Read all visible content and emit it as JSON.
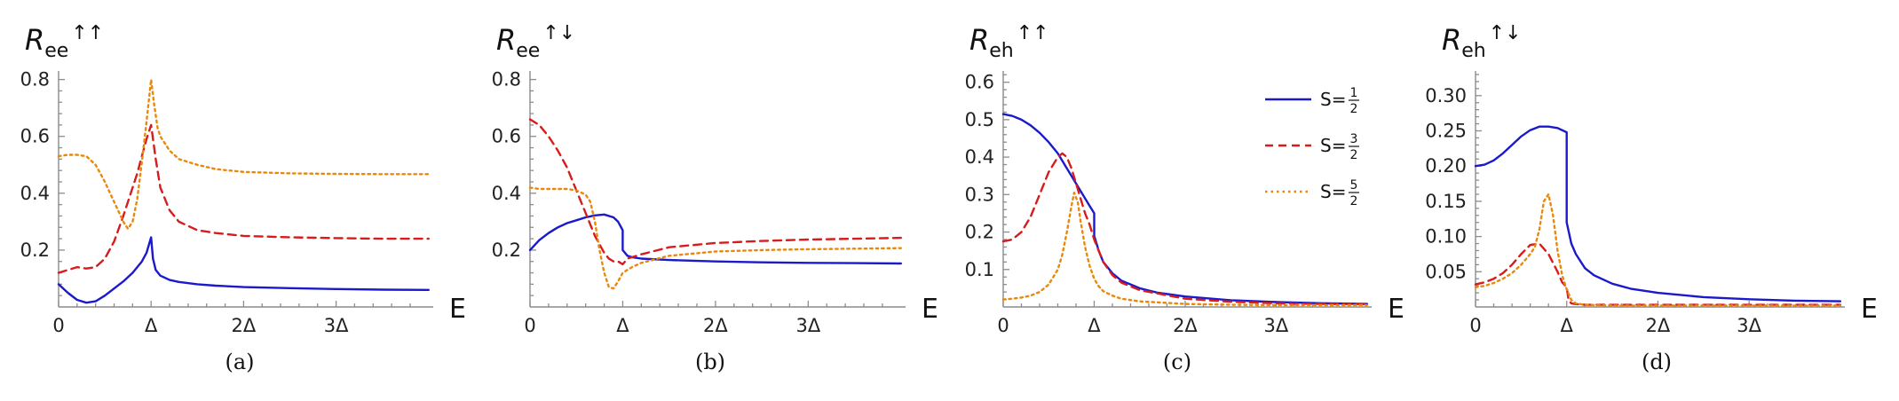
{
  "chart_data": [
    {
      "type": "line",
      "caption": "(a)",
      "ylabel": {
        "base": "R",
        "sub": "ee",
        "sup": "↑↑"
      },
      "xlabel": "E",
      "xlim": [
        0,
        4.05
      ],
      "ylim": [
        0.0,
        0.83
      ],
      "yticks": [
        {
          "value": 0.2,
          "label": "0.2"
        },
        {
          "value": 0.4,
          "label": "0.4"
        },
        {
          "value": 0.6,
          "label": "0.6"
        },
        {
          "value": 0.8,
          "label": "0.8"
        }
      ],
      "xticks": [
        {
          "value": 0,
          "label": "0"
        },
        {
          "value": 1,
          "label": "Δ"
        },
        {
          "value": 2,
          "label": "2Δ"
        },
        {
          "value": 3,
          "label": "3Δ"
        }
      ],
      "series": [
        {
          "name": "S=1/2",
          "x": [
            0,
            0.1,
            0.2,
            0.3,
            0.4,
            0.5,
            0.6,
            0.7,
            0.8,
            0.9,
            0.95,
            1.0,
            1.02,
            1.05,
            1.1,
            1.2,
            1.3,
            1.5,
            1.7,
            2.0,
            2.5,
            3.0,
            3.5,
            4.0
          ],
          "y": [
            0.08,
            0.05,
            0.025,
            0.015,
            0.02,
            0.04,
            0.065,
            0.09,
            0.12,
            0.16,
            0.19,
            0.245,
            0.17,
            0.13,
            0.11,
            0.095,
            0.088,
            0.08,
            0.075,
            0.07,
            0.066,
            0.063,
            0.061,
            0.06
          ]
        },
        {
          "name": "S=3/2",
          "x": [
            0,
            0.1,
            0.2,
            0.3,
            0.4,
            0.5,
            0.6,
            0.7,
            0.8,
            0.85,
            0.9,
            0.95,
            1.0,
            1.05,
            1.1,
            1.2,
            1.3,
            1.5,
            1.7,
            2.0,
            2.5,
            3.0,
            3.5,
            4.0
          ],
          "y": [
            0.12,
            0.13,
            0.14,
            0.135,
            0.14,
            0.17,
            0.23,
            0.32,
            0.42,
            0.47,
            0.53,
            0.59,
            0.64,
            0.52,
            0.42,
            0.34,
            0.3,
            0.27,
            0.26,
            0.25,
            0.245,
            0.242,
            0.24,
            0.24
          ]
        },
        {
          "name": "S=5/2",
          "x": [
            0,
            0.1,
            0.2,
            0.3,
            0.4,
            0.5,
            0.6,
            0.7,
            0.75,
            0.8,
            0.85,
            0.9,
            0.95,
            1.0,
            1.03,
            1.07,
            1.1,
            1.2,
            1.3,
            1.5,
            1.7,
            2.0,
            2.5,
            3.0,
            3.5,
            4.0
          ],
          "y": [
            0.53,
            0.535,
            0.535,
            0.53,
            0.5,
            0.44,
            0.37,
            0.3,
            0.275,
            0.3,
            0.38,
            0.51,
            0.65,
            0.8,
            0.72,
            0.63,
            0.6,
            0.55,
            0.52,
            0.5,
            0.485,
            0.475,
            0.47,
            0.468,
            0.467,
            0.467
          ]
        }
      ]
    },
    {
      "type": "line",
      "caption": "(b)",
      "ylabel": {
        "base": "R",
        "sub": "ee",
        "sup": "↑↓"
      },
      "xlabel": "E",
      "xlim": [
        0,
        4.05
      ],
      "ylim": [
        0.0,
        0.83
      ],
      "yticks": [
        {
          "value": 0.2,
          "label": "0.2"
        },
        {
          "value": 0.4,
          "label": "0.4"
        },
        {
          "value": 0.6,
          "label": "0.6"
        },
        {
          "value": 0.8,
          "label": "0.8"
        }
      ],
      "xticks": [
        {
          "value": 0,
          "label": "0"
        },
        {
          "value": 1,
          "label": "Δ"
        },
        {
          "value": 2,
          "label": "2Δ"
        },
        {
          "value": 3,
          "label": "3Δ"
        }
      ],
      "series": [
        {
          "name": "S=1/2",
          "x": [
            0,
            0.1,
            0.2,
            0.3,
            0.4,
            0.5,
            0.6,
            0.7,
            0.8,
            0.9,
            0.95,
            1.0,
            1.0,
            1.05,
            1.1,
            1.2,
            1.5,
            2.0,
            2.5,
            3.0,
            3.5,
            4.0
          ],
          "y": [
            0.2,
            0.235,
            0.26,
            0.28,
            0.295,
            0.305,
            0.315,
            0.322,
            0.325,
            0.315,
            0.3,
            0.27,
            0.2,
            0.18,
            0.175,
            0.17,
            0.165,
            0.16,
            0.157,
            0.155,
            0.154,
            0.153
          ]
        },
        {
          "name": "S=3/2",
          "x": [
            0,
            0.1,
            0.2,
            0.3,
            0.4,
            0.5,
            0.6,
            0.7,
            0.8,
            0.85,
            0.9,
            0.95,
            1.0,
            1.05,
            1.1,
            1.2,
            1.5,
            2.0,
            2.5,
            3.0,
            3.5,
            4.0
          ],
          "y": [
            0.66,
            0.64,
            0.6,
            0.55,
            0.49,
            0.41,
            0.33,
            0.25,
            0.19,
            0.17,
            0.16,
            0.16,
            0.15,
            0.17,
            0.175,
            0.185,
            0.21,
            0.225,
            0.232,
            0.237,
            0.24,
            0.243
          ]
        },
        {
          "name": "S=5/2",
          "x": [
            0,
            0.1,
            0.2,
            0.3,
            0.4,
            0.5,
            0.6,
            0.65,
            0.7,
            0.75,
            0.8,
            0.85,
            0.9,
            0.95,
            1.0,
            1.05,
            1.1,
            1.2,
            1.5,
            2.0,
            2.5,
            3.0,
            3.5,
            4.0
          ],
          "y": [
            0.42,
            0.415,
            0.415,
            0.415,
            0.415,
            0.41,
            0.395,
            0.37,
            0.3,
            0.2,
            0.12,
            0.07,
            0.065,
            0.09,
            0.12,
            0.13,
            0.14,
            0.155,
            0.18,
            0.195,
            0.2,
            0.203,
            0.205,
            0.207
          ]
        }
      ]
    },
    {
      "type": "line",
      "caption": "(c)",
      "ylabel": {
        "base": "R",
        "sub": "eh",
        "sup": "↑↑"
      },
      "xlabel": "E",
      "xlim": [
        0,
        4.05
      ],
      "ylim": [
        0.0,
        0.63
      ],
      "yticks": [
        {
          "value": 0.1,
          "label": "0.1"
        },
        {
          "value": 0.2,
          "label": "0.2"
        },
        {
          "value": 0.3,
          "label": "0.3"
        },
        {
          "value": 0.4,
          "label": "0.4"
        },
        {
          "value": 0.5,
          "label": "0.5"
        },
        {
          "value": 0.6,
          "label": "0.6"
        }
      ],
      "xticks": [
        {
          "value": 0,
          "label": "0"
        },
        {
          "value": 1,
          "label": "Δ"
        },
        {
          "value": 2,
          "label": "2Δ"
        },
        {
          "value": 3,
          "label": "3Δ"
        }
      ],
      "legend": {
        "placement": "top-right",
        "items": [
          {
            "prefix": "S=",
            "num": "1",
            "den": "2",
            "series": 0
          },
          {
            "prefix": "S=",
            "num": "3",
            "den": "2",
            "series": 1
          },
          {
            "prefix": "S=",
            "num": "5",
            "den": "2",
            "series": 2
          }
        ]
      },
      "series": [
        {
          "name": "S=1/2",
          "x": [
            0,
            0.1,
            0.2,
            0.3,
            0.4,
            0.5,
            0.6,
            0.7,
            0.8,
            0.9,
            0.95,
            1.0,
            1.0,
            1.05,
            1.1,
            1.2,
            1.3,
            1.5,
            1.7,
            2.0,
            2.5,
            3.0,
            3.5,
            4.0
          ],
          "y": [
            0.515,
            0.51,
            0.5,
            0.485,
            0.465,
            0.44,
            0.41,
            0.37,
            0.33,
            0.29,
            0.27,
            0.25,
            0.19,
            0.15,
            0.12,
            0.09,
            0.07,
            0.05,
            0.038,
            0.028,
            0.018,
            0.013,
            0.01,
            0.008
          ]
        },
        {
          "name": "S=3/2",
          "x": [
            0,
            0.1,
            0.2,
            0.3,
            0.4,
            0.5,
            0.6,
            0.65,
            0.7,
            0.75,
            0.8,
            0.85,
            0.9,
            0.95,
            1.0,
            1.05,
            1.1,
            1.2,
            1.3,
            1.5,
            2.0,
            2.5,
            3.0,
            3.5,
            4.0
          ],
          "y": [
            0.175,
            0.18,
            0.2,
            0.24,
            0.3,
            0.36,
            0.4,
            0.41,
            0.4,
            0.37,
            0.33,
            0.29,
            0.25,
            0.22,
            0.18,
            0.15,
            0.12,
            0.085,
            0.065,
            0.045,
            0.022,
            0.014,
            0.01,
            0.008,
            0.007
          ]
        },
        {
          "name": "S=5/2",
          "x": [
            0,
            0.1,
            0.2,
            0.3,
            0.4,
            0.5,
            0.6,
            0.65,
            0.7,
            0.75,
            0.78,
            0.82,
            0.85,
            0.9,
            0.95,
            1.0,
            1.05,
            1.1,
            1.2,
            1.3,
            1.5,
            2.0,
            2.5,
            3.0,
            3.5,
            4.0
          ],
          "y": [
            0.02,
            0.022,
            0.025,
            0.03,
            0.04,
            0.06,
            0.1,
            0.14,
            0.2,
            0.27,
            0.305,
            0.28,
            0.23,
            0.16,
            0.11,
            0.075,
            0.055,
            0.042,
            0.03,
            0.022,
            0.015,
            0.008,
            0.006,
            0.005,
            0.005,
            0.005
          ]
        }
      ]
    },
    {
      "type": "line",
      "caption": "(d)",
      "ylabel": {
        "base": "R",
        "sub": "eh",
        "sup": "↑↓"
      },
      "xlabel": "E",
      "xlim": [
        0,
        4.05
      ],
      "ylim": [
        0.0,
        0.335
      ],
      "yticks": [
        {
          "value": 0.05,
          "label": "0.05"
        },
        {
          "value": 0.1,
          "label": "0.10"
        },
        {
          "value": 0.15,
          "label": "0.15"
        },
        {
          "value": 0.2,
          "label": "0.20"
        },
        {
          "value": 0.25,
          "label": "0.25"
        },
        {
          "value": 0.3,
          "label": "0.30"
        }
      ],
      "xticks": [
        {
          "value": 0,
          "label": "0"
        },
        {
          "value": 1,
          "label": "Δ"
        },
        {
          "value": 2,
          "label": "2Δ"
        },
        {
          "value": 3,
          "label": "3Δ"
        }
      ],
      "series": [
        {
          "name": "S=1/2",
          "x": [
            0,
            0.1,
            0.2,
            0.3,
            0.4,
            0.5,
            0.6,
            0.7,
            0.8,
            0.9,
            1.0,
            1.0,
            1.05,
            1.1,
            1.2,
            1.3,
            1.5,
            1.7,
            2.0,
            2.5,
            3.0,
            3.5,
            4.0
          ],
          "y": [
            0.2,
            0.202,
            0.208,
            0.218,
            0.23,
            0.242,
            0.251,
            0.256,
            0.256,
            0.254,
            0.248,
            0.12,
            0.09,
            0.075,
            0.055,
            0.045,
            0.033,
            0.026,
            0.02,
            0.014,
            0.011,
            0.009,
            0.008
          ]
        },
        {
          "name": "S=3/2",
          "x": [
            0,
            0.1,
            0.2,
            0.3,
            0.4,
            0.5,
            0.6,
            0.7,
            0.8,
            0.9,
            0.95,
            1.0,
            1.02,
            1.05,
            1.1,
            1.2,
            1.5,
            2.0,
            2.5,
            3.0,
            3.5,
            4.0
          ],
          "y": [
            0.032,
            0.035,
            0.04,
            0.048,
            0.06,
            0.075,
            0.088,
            0.09,
            0.075,
            0.05,
            0.035,
            0.028,
            0.01,
            0.005,
            0.004,
            0.003,
            0.003,
            0.003,
            0.003,
            0.003,
            0.003,
            0.003
          ]
        },
        {
          "name": "S=5/2",
          "x": [
            0,
            0.1,
            0.2,
            0.3,
            0.4,
            0.5,
            0.6,
            0.65,
            0.7,
            0.75,
            0.8,
            0.85,
            0.9,
            0.95,
            1.0,
            1.05,
            1.1,
            1.2,
            1.5,
            2.0,
            2.5,
            3.0,
            3.5,
            4.0
          ],
          "y": [
            0.028,
            0.03,
            0.034,
            0.04,
            0.048,
            0.06,
            0.075,
            0.085,
            0.11,
            0.15,
            0.16,
            0.13,
            0.08,
            0.045,
            0.025,
            0.01,
            0.005,
            0.003,
            0.002,
            0.002,
            0.002,
            0.002,
            0.002,
            0.002
          ]
        }
      ]
    }
  ],
  "series_styles": [
    {
      "color": "#1a1acc",
      "dash": ""
    },
    {
      "color": "#d61c1c",
      "dash": "9,6"
    },
    {
      "color": "#e8890c",
      "dash": "2.5,4"
    }
  ]
}
